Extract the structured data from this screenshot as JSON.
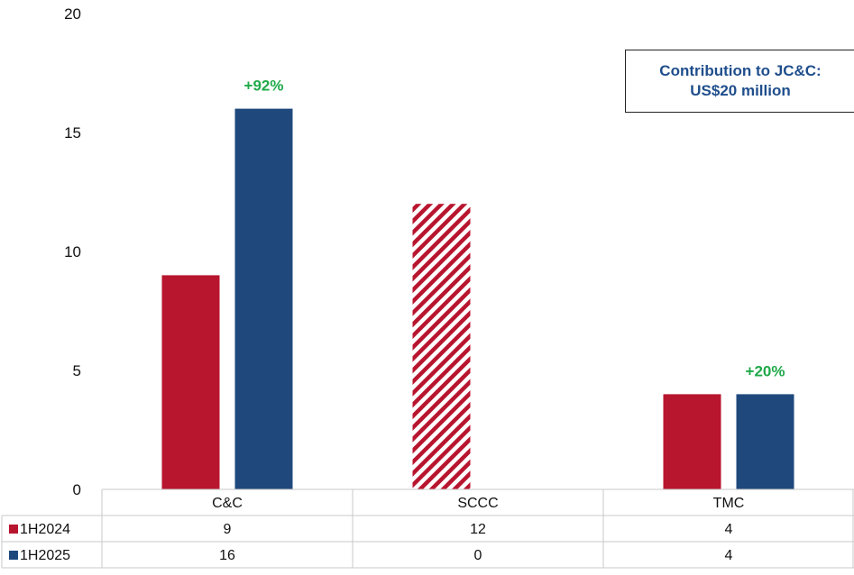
{
  "chart_data": {
    "type": "bar",
    "categories": [
      "C&C",
      "SCCC",
      "TMC"
    ],
    "series": [
      {
        "name": "1H2024",
        "values": [
          9,
          12,
          4
        ],
        "color": "#b8152f",
        "hatched_categories": [
          "SCCC"
        ]
      },
      {
        "name": "1H2025",
        "values": [
          16,
          0,
          4
        ],
        "color": "#1f497d"
      }
    ],
    "ylim": [
      0,
      20
    ],
    "yticks": [
      0,
      5,
      10,
      15,
      20
    ],
    "data_table": true,
    "annotations": [
      {
        "category": "C&C",
        "series": "1H2025",
        "text": "+92%",
        "color": "#21a94a"
      },
      {
        "category": "TMC",
        "series": "1H2025",
        "text": "+20%",
        "color": "#21a94a"
      }
    ],
    "callout": {
      "lines": [
        "Contribution to JC&C:",
        "US$20 million"
      ],
      "color": "#1f4e8c"
    },
    "grid": false
  }
}
